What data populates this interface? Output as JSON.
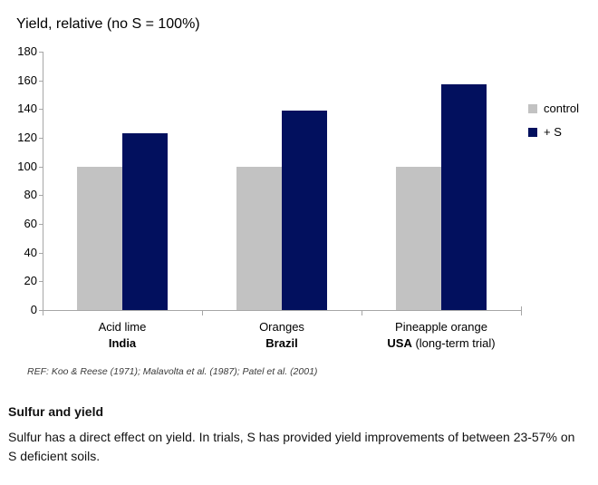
{
  "chart": {
    "ref_note": "REF: Koo & Reese (1971); Malavolta et al. (1987); Patel et al. (2001)"
  },
  "chart_data": {
    "type": "bar",
    "title": "Yield, relative (no S = 100%)",
    "categories": [
      {
        "label": "Acid lime",
        "sub_bold": "India",
        "sub_rest": ""
      },
      {
        "label": "Oranges",
        "sub_bold": "Brazil",
        "sub_rest": ""
      },
      {
        "label": "Pineapple orange",
        "sub_bold": "USA",
        "sub_rest": " (long-term trial)"
      }
    ],
    "series": [
      {
        "name": "control",
        "values": [
          100,
          100,
          100
        ],
        "color": "#c2c2c2"
      },
      {
        "name": "+ S",
        "values": [
          123,
          139,
          157
        ],
        "color": "#02105e"
      }
    ],
    "ylabel": "Yield, relative (no S = 100%)",
    "xlabel": "",
    "ylim": [
      0,
      180
    ],
    "yticks": [
      0,
      20,
      40,
      60,
      80,
      100,
      120,
      140,
      160,
      180
    ],
    "grid": false,
    "legend_position": "right",
    "axis_color": "#a6a6a6"
  },
  "footer": {
    "heading": "Sulfur and yield",
    "body": "Sulfur has a direct effect on yield. In trials, S has provided yield improvements of between 23-57% on S deficient soils."
  }
}
